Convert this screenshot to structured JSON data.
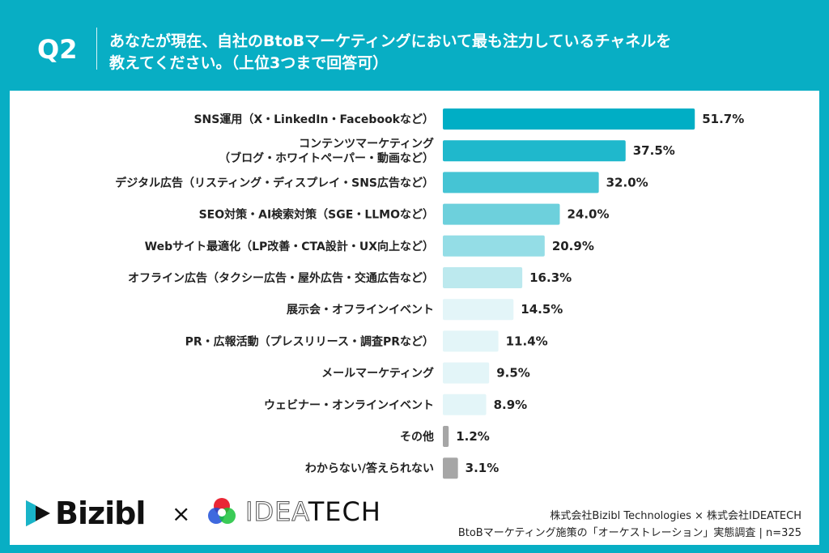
{
  "header": {
    "question_no": "Q2",
    "title_line1": "あなたが現在、自社のBtoBマーケティングにおいて最も注力しているチャネルを",
    "title_line2": "教えてください。（上位3つまで回答可）"
  },
  "chart_data": {
    "type": "bar",
    "orientation": "horizontal",
    "categories": [
      [
        "SNS運用（X・LinkedIn・Facebookなど）"
      ],
      [
        "コンテンツマーケティング",
        "（ブログ・ホワイトペーパー・動画など）"
      ],
      [
        "デジタル広告（リスティング・ディスプレイ・SNS広告など）"
      ],
      [
        "SEO対策・AI検索対策（SGE・LLMOなど）"
      ],
      [
        "Webサイト最適化（LP改善・CTA設計・UX向上など）"
      ],
      [
        "オフライン広告（タクシー広告・屋外広告・交通広告など）"
      ],
      [
        "展示会・オフラインイベント"
      ],
      [
        "PR・広報活動（プレスリリース・調査PRなど）"
      ],
      [
        "メールマーケティング"
      ],
      [
        "ウェビナー・オンラインイベント"
      ],
      [
        "その他"
      ],
      [
        "わからない/答えられない"
      ]
    ],
    "values": [
      51.7,
      37.5,
      32.0,
      24.0,
      20.9,
      16.3,
      14.5,
      11.4,
      9.5,
      8.9,
      1.2,
      3.1
    ],
    "value_labels": [
      "51.7%",
      "37.5%",
      "32.0%",
      "24.0%",
      "20.9%",
      "16.3%",
      "14.5%",
      "11.4%",
      "9.5%",
      "8.9%",
      "1.2%",
      "3.1%"
    ],
    "colors": [
      "#00aec5",
      "#1fb8cc",
      "#45c4d4",
      "#6dd0dc",
      "#94dde6",
      "#bce9ee",
      "#e3f5f8",
      "#e3f5f8",
      "#e3f5f8",
      "#e3f5f8",
      "#a6a6a6",
      "#a6a6a6"
    ],
    "unit": "%",
    "grid": false,
    "legend": "none"
  },
  "footer": {
    "logo_bizibl": "Bizibl",
    "times": "×",
    "logo_ideatech_light": "IDEA",
    "logo_ideatech_dark": "TECH",
    "credit_line1": "株式会社Bizibl Technologies × 株式会社IDEATECH",
    "credit_line2": "BtoBマーケティング施策の「オーケストレーション」実態調査 | n=325"
  }
}
